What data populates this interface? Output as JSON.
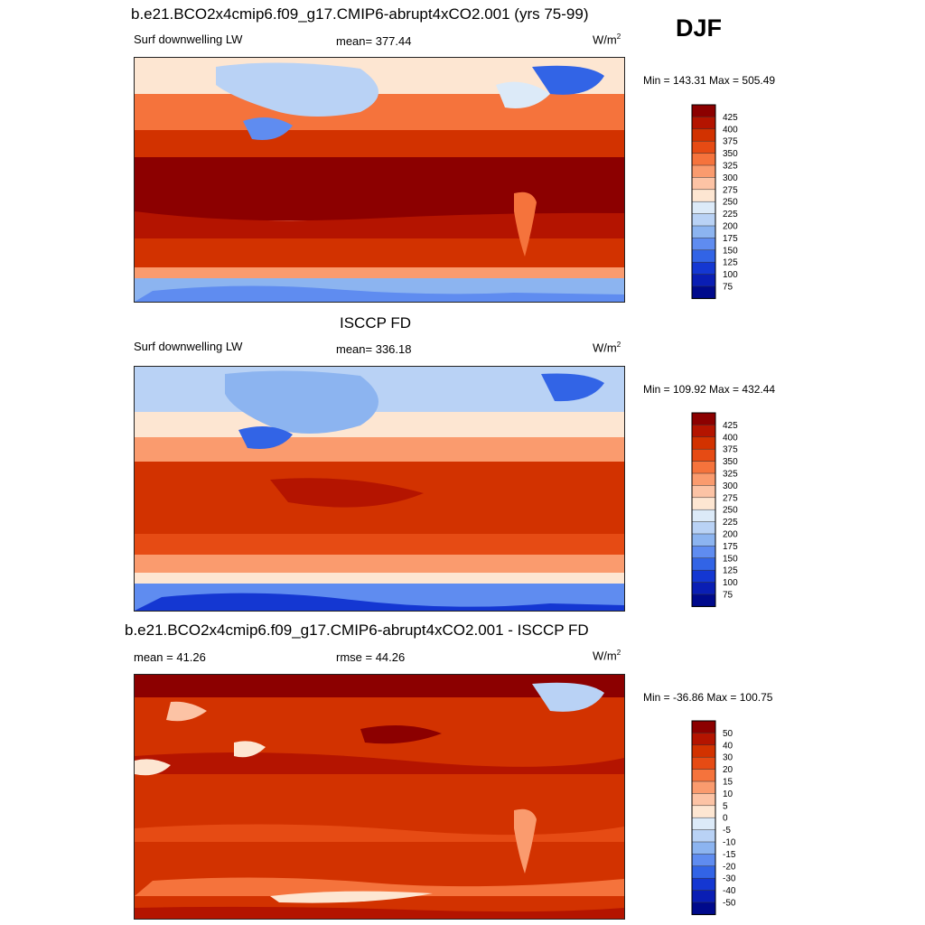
{
  "season": "DJF",
  "panels": [
    {
      "title": "b.e21.BCO2x4cmip6.f09_g17.CMIP6-abrupt4xCO2.001 (yrs 75-99)",
      "left_label": "Surf downwelling LW",
      "center_label": "mean= 377.44",
      "units": "W/m",
      "units_sup": "2",
      "minmax": "Min = 143.31 Max = 505.49"
    },
    {
      "title": "ISCCP FD",
      "left_label": "Surf downwelling LW",
      "center_label": "mean= 336.18",
      "units": "W/m",
      "units_sup": "2",
      "minmax": "Min = 109.92 Max = 432.44"
    },
    {
      "title": "b.e21.BCO2x4cmip6.f09_g17.CMIP6-abrupt4xCO2.001 - ISCCP FD",
      "left_label": "mean =  41.26",
      "center_label": "rmse =  44.26",
      "units": "W/m",
      "units_sup": "2",
      "minmax": "Min = -36.86 Max = 100.75"
    }
  ],
  "chart_data": [
    {
      "type": "heatmap",
      "title": "b.e21.BCO2x4cmip6.f09_g17.CMIP6-abrupt4xCO2.001 (yrs 75-99)",
      "variable": "Surf downwelling LW",
      "mean": 377.44,
      "min": 143.31,
      "max": 505.49,
      "colorbar_levels": [
        "425",
        "400",
        "375",
        "350",
        "325",
        "300",
        "275",
        "250",
        "225",
        "200",
        "175",
        "150",
        "125",
        "100",
        "75"
      ],
      "colors": [
        "#8c0000",
        "#b41400",
        "#d23200",
        "#e64b14",
        "#f5733c",
        "#fa9b6e",
        "#fcc3a5",
        "#fde6d2",
        "#dceaf8",
        "#b9d2f5",
        "#8cb4f0",
        "#5f8cf0",
        "#3264e6",
        "#1437d2",
        "#0a1eb4",
        "#000a8c"
      ]
    },
    {
      "type": "heatmap",
      "title": "ISCCP FD",
      "variable": "Surf downwelling LW",
      "mean": 336.18,
      "min": 109.92,
      "max": 432.44,
      "colorbar_levels": [
        "425",
        "400",
        "375",
        "350",
        "325",
        "300",
        "275",
        "250",
        "225",
        "200",
        "175",
        "150",
        "125",
        "100",
        "75"
      ],
      "colors": [
        "#8c0000",
        "#b41400",
        "#d23200",
        "#e64b14",
        "#f5733c",
        "#fa9b6e",
        "#fcc3a5",
        "#fde6d2",
        "#dceaf8",
        "#b9d2f5",
        "#8cb4f0",
        "#5f8cf0",
        "#3264e6",
        "#1437d2",
        "#0a1eb4",
        "#000a8c"
      ]
    },
    {
      "type": "heatmap",
      "title": "b.e21.BCO2x4cmip6.f09_g17.CMIP6-abrupt4xCO2.001 - ISCCP FD",
      "variable": "difference",
      "mean": 41.26,
      "rmse": 44.26,
      "min": -36.86,
      "max": 100.75,
      "colorbar_levels": [
        "50",
        "40",
        "30",
        "20",
        "15",
        "10",
        "5",
        "0",
        "-5",
        "-10",
        "-15",
        "-20",
        "-30",
        "-40",
        "-50"
      ],
      "colors": [
        "#8c0000",
        "#b41400",
        "#d23200",
        "#e64b14",
        "#f5733c",
        "#fa9b6e",
        "#fcc3a5",
        "#fde6d2",
        "#dceaf8",
        "#b9d2f5",
        "#8cb4f0",
        "#5f8cf0",
        "#3264e6",
        "#1437d2",
        "#0a1eb4",
        "#000a8c"
      ]
    }
  ]
}
